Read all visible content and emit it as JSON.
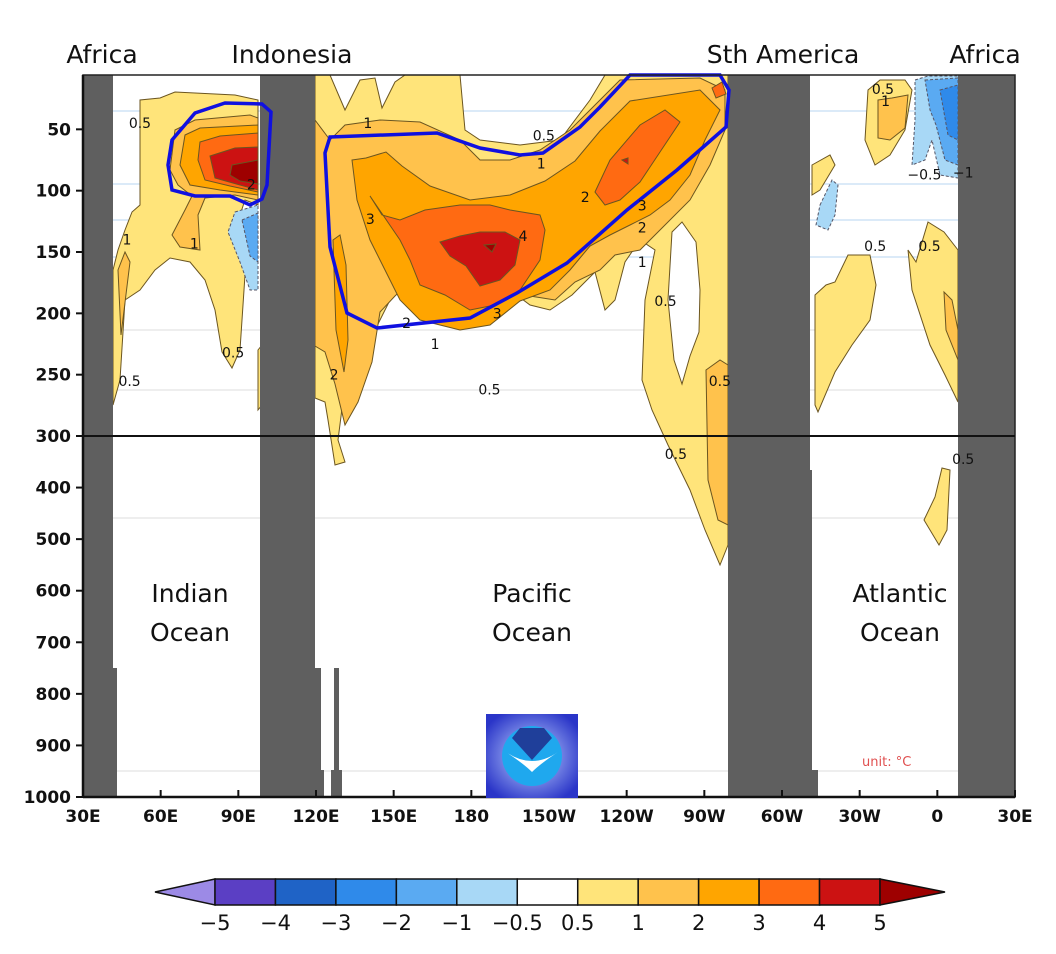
{
  "chart_data": {
    "type": "heatmap",
    "title": "",
    "description_units": "unit: °C",
    "unit_label": "unit: °C",
    "xlabel": "",
    "ylabel": "",
    "x_ticks": [
      "30E",
      "60E",
      "90E",
      "120E",
      "150E",
      "180",
      "150W",
      "120W",
      "90W",
      "60W",
      "30W",
      "0",
      "30E"
    ],
    "x_range_deg_east": [
      30,
      390
    ],
    "y_ticks_upper": [
      "50",
      "100",
      "150",
      "200",
      "250",
      "300"
    ],
    "y_ticks_lower": [
      "400",
      "500",
      "600",
      "700",
      "800",
      "900",
      "1000"
    ],
    "y_range_m": [
      0,
      1000
    ],
    "y_axis_break_m": 300,
    "region_labels_top": [
      "Africa",
      "Indonesia",
      "Sth America",
      "Africa"
    ],
    "ocean_labels": [
      {
        "line1": "Indian",
        "line2": "Ocean"
      },
      {
        "line1": "Pacific",
        "line2": "Ocean"
      },
      {
        "line1": "Atlantic",
        "line2": "Ocean"
      }
    ],
    "colorbar": {
      "labels": [
        "−5",
        "−4",
        "−3",
        "−2",
        "−1",
        "−0.5",
        "0.5",
        "1",
        "2",
        "3",
        "4",
        "5"
      ],
      "levels": [
        -5,
        -4,
        -3,
        -2,
        -1,
        -0.5,
        0.5,
        1,
        2,
        3,
        4,
        5
      ],
      "colors": [
        "#9c8ae6",
        "#5b3fc4",
        "#1f63c6",
        "#2f8aea",
        "#5aaaf2",
        "#a8d8f6",
        "#ffffff",
        "#ffe47a",
        "#ffc24c",
        "#ffa500",
        "#ff6a12",
        "#cc1212",
        "#9e0000"
      ]
    },
    "contour_labels": [
      {
        "text": "0.5",
        "lon": 52,
        "depth": 45
      },
      {
        "text": "1",
        "lon": 47,
        "depth": 140
      },
      {
        "text": "1",
        "lon": 73,
        "depth": 143
      },
      {
        "text": "2",
        "lon": 95,
        "depth": 95
      },
      {
        "text": "0.5",
        "lon": 88,
        "depth": 232
      },
      {
        "text": "0.5",
        "lon": 48,
        "depth": 255
      },
      {
        "text": "1",
        "lon": 140,
        "depth": 45
      },
      {
        "text": "0.5",
        "lon": 208,
        "depth": 55
      },
      {
        "text": "1",
        "lon": 207,
        "depth": 78
      },
      {
        "text": "2",
        "lon": 224,
        "depth": 105
      },
      {
        "text": "3",
        "lon": 141,
        "depth": 123
      },
      {
        "text": "4",
        "lon": 200,
        "depth": 137
      },
      {
        "text": "3",
        "lon": 246,
        "depth": 112
      },
      {
        "text": "2",
        "lon": 246,
        "depth": 130
      },
      {
        "text": "1",
        "lon": 246,
        "depth": 158
      },
      {
        "text": "0.5",
        "lon": 255,
        "depth": 190
      },
      {
        "text": "2",
        "lon": 155,
        "depth": 208
      },
      {
        "text": "3",
        "lon": 190,
        "depth": 200
      },
      {
        "text": "1",
        "lon": 166,
        "depth": 225
      },
      {
        "text": "2",
        "lon": 127,
        "depth": 250
      },
      {
        "text": "0.5",
        "lon": 187,
        "depth": 262
      },
      {
        "text": "0.5",
        "lon": 276,
        "depth": 255
      },
      {
        "text": "0.5",
        "lon": 259,
        "depth": 335
      },
      {
        "text": "0.5",
        "lon": 339,
        "depth": 17
      },
      {
        "text": "1",
        "lon": 340,
        "depth": 27
      },
      {
        "text": "−0.5",
        "lon": 355,
        "depth": 87
      },
      {
        "text": "−1",
        "lon": 370,
        "depth": 85
      },
      {
        "text": "0.5",
        "lon": 336,
        "depth": 145
      },
      {
        "text": "0.5",
        "lon": 357,
        "depth": 145
      },
      {
        "text": "0.5",
        "lon": 370,
        "depth": 345
      }
    ],
    "highlighted_regions": [
      "Indian Ocean warm anomaly (~90E, 50–110 m)",
      "Pacific warm anomaly (150E–80W, 10–210 m)"
    ],
    "max_anomaly_c": 5,
    "logo": "NOAA"
  }
}
